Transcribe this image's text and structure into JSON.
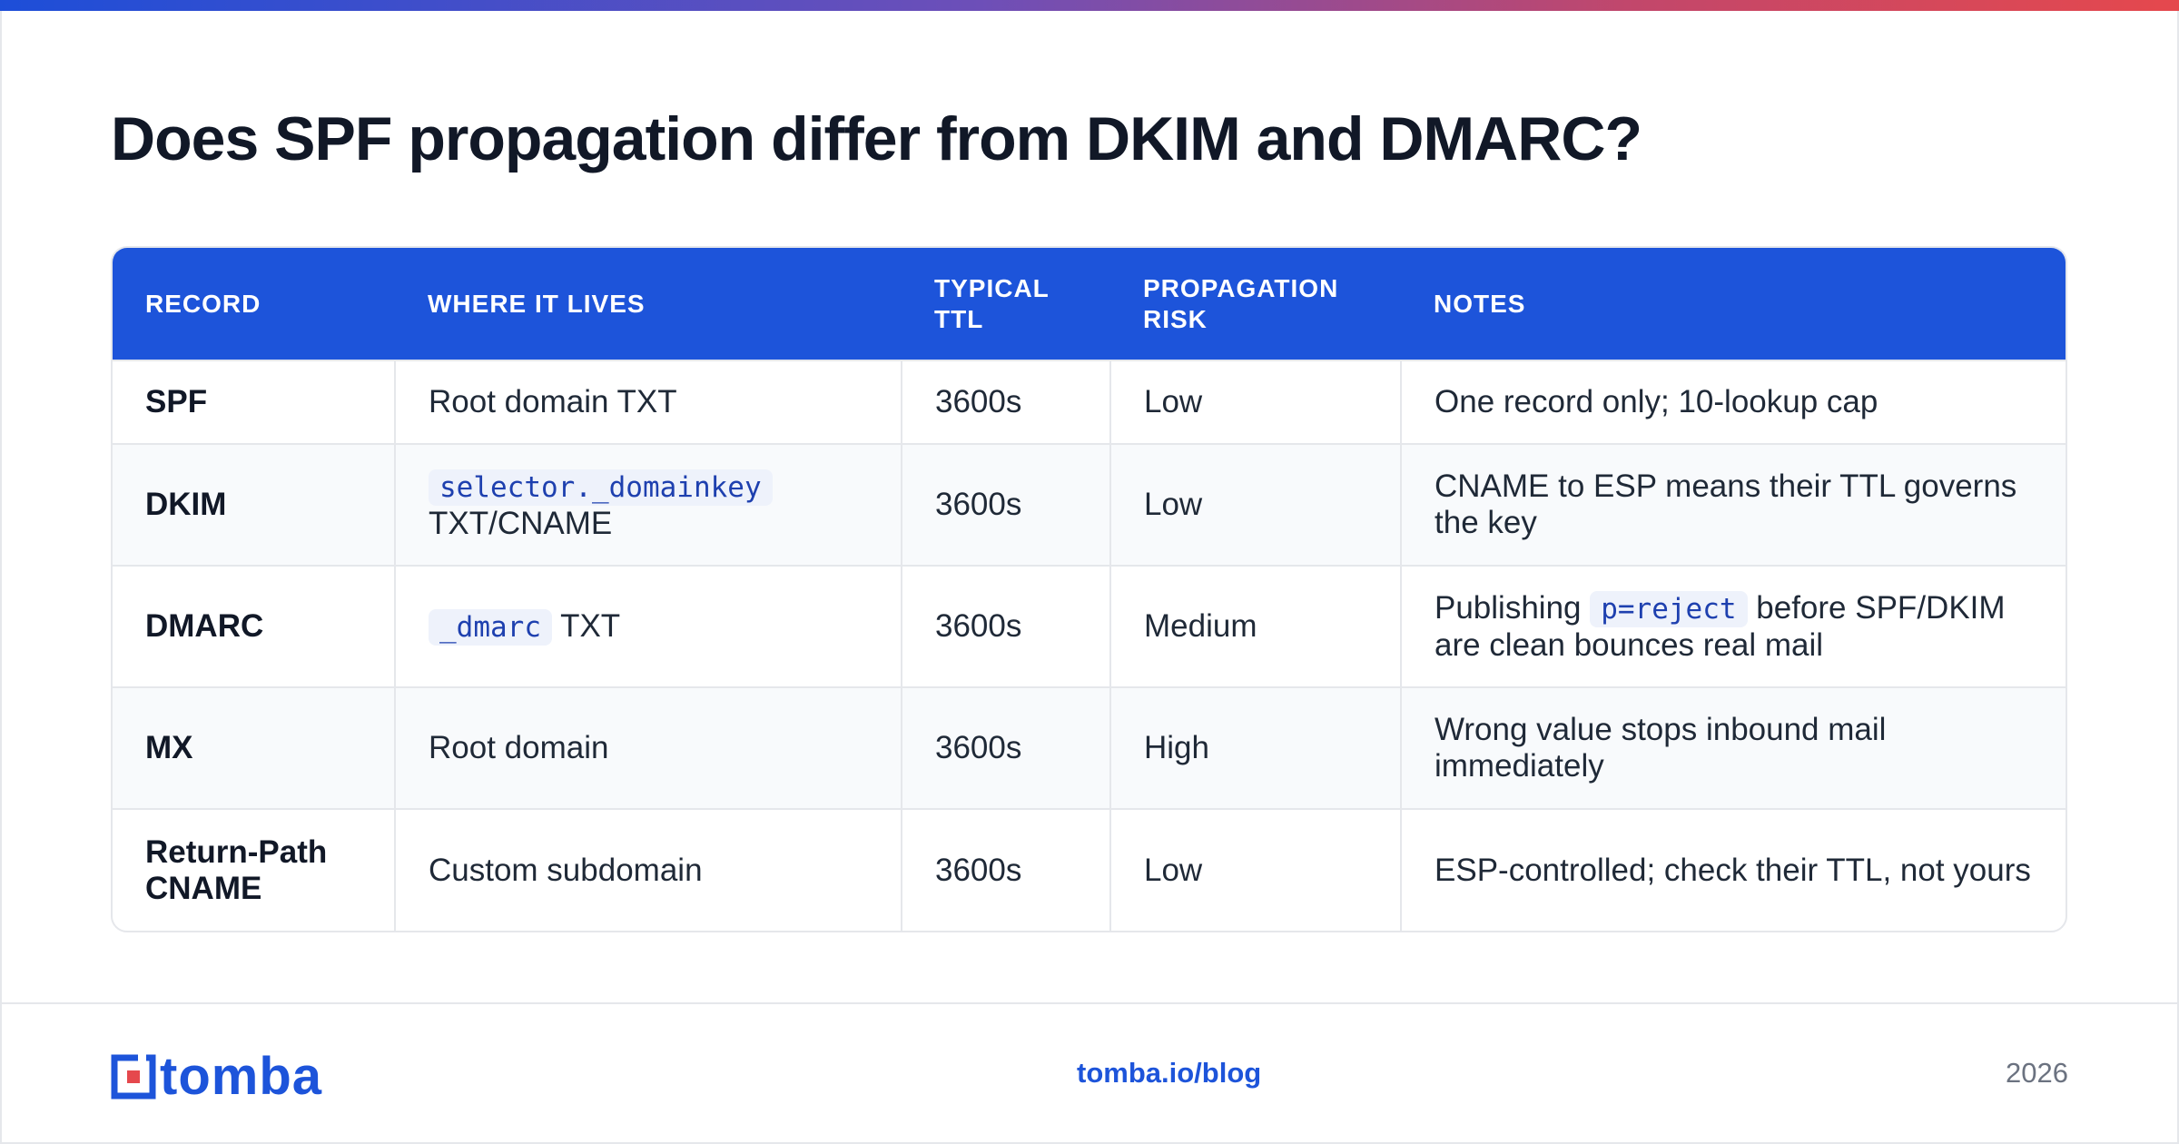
{
  "title": "Does SPF propagation differ from DKIM and DMARC?",
  "table": {
    "headers": [
      "RECORD",
      "WHERE IT LIVES",
      "TYPICAL TTL",
      "PROPAGATION RISK",
      "NOTES"
    ],
    "rows": [
      {
        "record": "SPF",
        "where": {
          "text": "Root domain TXT"
        },
        "ttl": "3600s",
        "risk": "Low",
        "notes": {
          "text": "One record only; 10-lookup cap"
        }
      },
      {
        "record": "DKIM",
        "where": {
          "code": "selector._domainkey",
          "text": "TXT/CNAME"
        },
        "ttl": "3600s",
        "risk": "Low",
        "notes": {
          "text": "CNAME to ESP means their TTL governs the key"
        }
      },
      {
        "record": "DMARC",
        "where": {
          "code": "_dmarc",
          "text": "TXT"
        },
        "ttl": "3600s",
        "risk": "Medium",
        "notes": {
          "before": "Publishing",
          "code": "p=reject",
          "after": "before SPF/DKIM are clean bounces real mail"
        }
      },
      {
        "record": "MX",
        "where": {
          "text": "Root domain"
        },
        "ttl": "3600s",
        "risk": "High",
        "notes": {
          "text": "Wrong value stops inbound mail immediately"
        }
      },
      {
        "record": "Return-Path CNAME",
        "where": {
          "text": "Custom subdomain"
        },
        "ttl": "3600s",
        "risk": "Low",
        "notes": {
          "text": "ESP-controlled; check their TTL, not yours"
        }
      }
    ]
  },
  "footer": {
    "brand": "tomba",
    "link": "tomba.io/blog",
    "year": "2026"
  },
  "colors": {
    "accent": "#1d54da",
    "logo_red": "#e5484d",
    "gradient": [
      "#1d4ed8",
      "#6d4fb8",
      "#c2476b",
      "#e5484d"
    ]
  },
  "icons": [
    "tomba-logo-mark-icon"
  ]
}
